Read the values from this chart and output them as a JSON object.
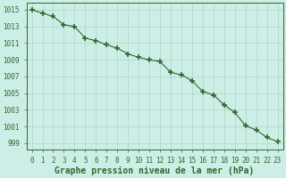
{
  "x": [
    0,
    1,
    2,
    3,
    4,
    5,
    6,
    7,
    8,
    9,
    10,
    11,
    12,
    13,
    14,
    15,
    16,
    17,
    18,
    19,
    20,
    21,
    22,
    23
  ],
  "y": [
    1015.0,
    1014.6,
    1014.2,
    1013.2,
    1013.0,
    1011.6,
    1011.3,
    1010.8,
    1010.4,
    1009.7,
    1009.3,
    1009.0,
    1008.8,
    1007.5,
    1007.2,
    1006.5,
    1005.2,
    1004.8,
    1003.6,
    1002.7,
    1001.1,
    1000.6,
    999.7,
    999.2
  ],
  "line_color": "#2d6a2d",
  "marker": "+",
  "marker_color": "#2d6a2d",
  "bg_color": "#cceee6",
  "grid_color": "#aaccbb",
  "xlabel": "Graphe pression niveau de la mer (hPa)",
  "xlabel_fontsize": 7,
  "ylabel_ticks": [
    999,
    1001,
    1003,
    1005,
    1007,
    1009,
    1011,
    1013,
    1015
  ],
  "ylim": [
    998.2,
    1015.8
  ],
  "xlim": [
    -0.5,
    23.5
  ],
  "xticks": [
    0,
    1,
    2,
    3,
    4,
    5,
    6,
    7,
    8,
    9,
    10,
    11,
    12,
    13,
    14,
    15,
    16,
    17,
    18,
    19,
    20,
    21,
    22,
    23
  ],
  "tick_fontsize": 5.5,
  "tick_color": "#2d6a2d",
  "axis_color": "#2d6a2d",
  "spine_color": "#2d6a2d"
}
